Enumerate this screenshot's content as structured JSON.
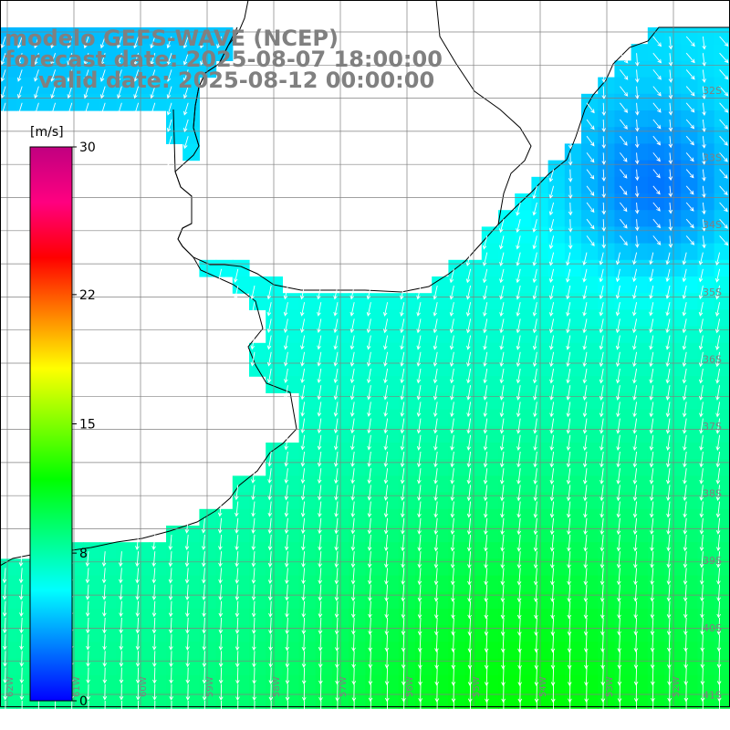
{
  "title": {
    "line1": "modelo GEFS-WAVE (NCEP)",
    "line2": "forecast date: 2025-08-07 18:00:00",
    "line3": "valid date: 2025-08-12 00:00:00"
  },
  "colorbar": {
    "unit": "[m/s]",
    "ticks": [
      "30",
      "22",
      "15",
      "8",
      "0"
    ],
    "tick_values": [
      30,
      22,
      15,
      8,
      0
    ],
    "min": 0,
    "max": 30,
    "colors": [
      "#0000ff",
      "#0080ff",
      "#00ffff",
      "#00ff80",
      "#00ff00",
      "#80ff00",
      "#ffff00",
      "#ff8000",
      "#ff0000",
      "#ff0080",
      "#c00080"
    ]
  },
  "map": {
    "lat_labels": [
      "32S",
      "33S",
      "34S",
      "35S",
      "36S",
      "37S",
      "38S",
      "39S",
      "40S",
      "41S"
    ],
    "lon_labels": [
      "62W",
      "61W",
      "60W",
      "59W",
      "58W",
      "57W",
      "56W",
      "55W",
      "54W",
      "53W",
      "52W"
    ],
    "colors": {
      "land": "#ffffff",
      "grid": "#808080",
      "coast": "#000000",
      "arrow": "#ffffff"
    }
  }
}
